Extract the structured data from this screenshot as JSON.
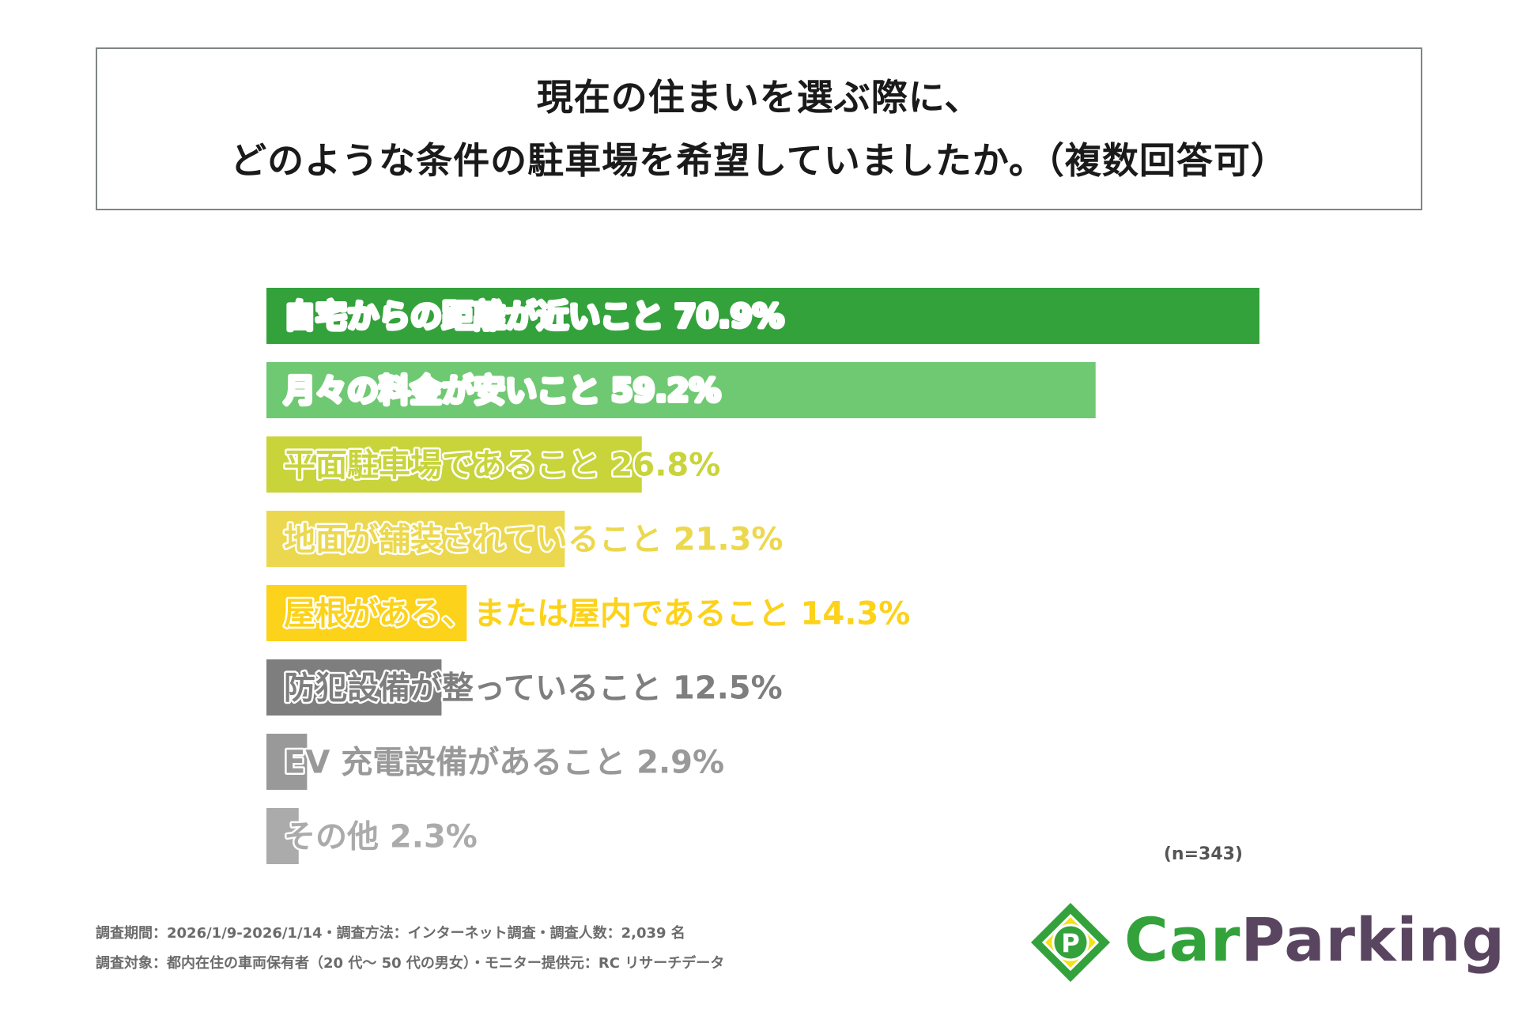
{
  "title": {
    "line1": "現在の住まいを選ぶ際に、",
    "line2": "どのような条件の駐車場を希望していましたか。（複数回答可）"
  },
  "chart_data": {
    "type": "bar",
    "orientation": "horizontal",
    "categories": [
      "自宅からの距離が近いこと",
      "月々の料金が安いこと",
      "平面駐車場であること",
      "地面が舗装されていること",
      "屋根がある、または屋内であること",
      "防犯設備が整っていること",
      "EV 充電設備があること",
      "その他"
    ],
    "values": [
      70.9,
      59.2,
      26.8,
      21.3,
      14.3,
      12.5,
      2.9,
      2.3
    ],
    "value_labels": [
      "70.9%",
      "59.2%",
      "26.8%",
      "21.3%",
      "14.3%",
      "12.5%",
      "2.9%",
      "2.3%"
    ],
    "colors": [
      "#33a23b",
      "#6fc972",
      "#c8d43a",
      "#ecd84e",
      "#fcd21a",
      "#7e7e7e",
      "#999999",
      "#ababab"
    ],
    "label_colors": [
      "#ffffff",
      "#ffffff",
      "#c8d43a",
      "#ecd84e",
      "#fcd21a",
      "#7e7e7e",
      "#999999",
      "#ababab"
    ],
    "xlim": [
      0,
      70.9
    ],
    "grid": false,
    "title": "",
    "xlabel": "",
    "ylabel": ""
  },
  "sample_note": "(n=343)",
  "footnotes": {
    "line1": "調査期間：2026/1/9-2026/1/14・調査方法：インターネット調査・調査人数：2,039 名",
    "line2": "調査対象：都内在住の車両保有者（20 代～ 50 代の男女）・モニター提供元：RC リサーチデータ"
  },
  "logo": {
    "mark_letter": "P",
    "text_car": "Car",
    "text_parking": "Parking",
    "icon": "carparking-logo-icon",
    "colors": {
      "green": "#33a23b",
      "yellow": "#f2e21a",
      "purple": "#5a4560"
    }
  }
}
